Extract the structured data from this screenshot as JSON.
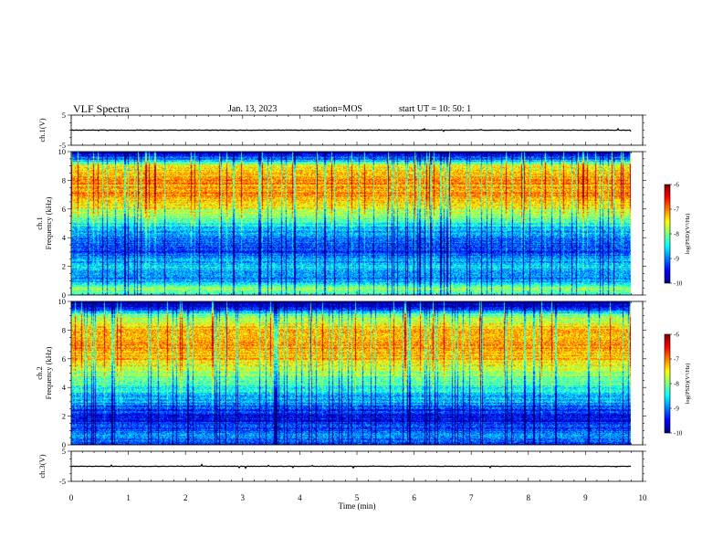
{
  "header": {
    "title": "VLF Spectra",
    "date": "Jan. 13, 2023",
    "station": "station=MOS",
    "start": "start UT =  10: 50: 1"
  },
  "chart_data": {
    "type": "heatmap",
    "time_axis": {
      "label": "Time (min)",
      "range": [
        0,
        10
      ],
      "ticks": [
        "0",
        "1",
        "2",
        "3",
        "4",
        "5",
        "6",
        "7",
        "8",
        "9",
        "10"
      ]
    },
    "panels": [
      {
        "kind": "line",
        "ylabel": "ch.1(V)",
        "ylim": [
          -5,
          5
        ],
        "yticks": [
          "5",
          "-5"
        ],
        "baseline_v": 0,
        "end_min": 9.8
      },
      {
        "kind": "spectrogram",
        "ylabel_top": "ch.1",
        "ylabel_bottom": "Frequency (kHz)",
        "ylim": [
          0,
          10
        ],
        "yticks": [
          "0",
          "2",
          "4",
          "6",
          "8",
          "10"
        ],
        "end_min": 9.8,
        "band_profile_khz": [
          0,
          0.5,
          1,
          2,
          3,
          4,
          5,
          6,
          7,
          8,
          9,
          9.5,
          10
        ],
        "band_profile_level": [
          -8.5,
          -7.8,
          -9.0,
          -8.6,
          -9.3,
          -9.1,
          -8.4,
          -7.6,
          -7.1,
          -7.1,
          -7.5,
          -9.0,
          -10.0
        ],
        "colorbar": {
          "label": "log(PSD)(V²/Hz)",
          "range": [
            -10,
            -6
          ],
          "ticks": [
            "-6",
            "-7",
            "-8",
            "-9",
            "-10"
          ]
        }
      },
      {
        "kind": "spectrogram",
        "ylabel_top": "ch.2",
        "ylabel_bottom": "Frequency (kHz)",
        "ylim": [
          0,
          10
        ],
        "yticks": [
          "0",
          "2",
          "4",
          "6",
          "8",
          "10"
        ],
        "end_min": 9.8,
        "band_profile_khz": [
          0,
          0.5,
          1,
          2,
          3,
          4,
          5,
          6,
          7,
          8,
          9,
          9.5,
          10
        ],
        "band_profile_level": [
          -9.6,
          -8.8,
          -9.2,
          -9.6,
          -8.9,
          -8.4,
          -7.9,
          -7.3,
          -7.0,
          -7.3,
          -7.9,
          -9.3,
          -10.0
        ],
        "colorbar": {
          "label": "log(PSD)(V²/Hz)",
          "range": [
            -10,
            -6
          ],
          "ticks": [
            "-6",
            "-7",
            "-8",
            "-9",
            "-10"
          ]
        }
      },
      {
        "kind": "line",
        "ylabel": "ch.3(V)",
        "ylim": [
          -5,
          5
        ],
        "yticks": [
          "5",
          "-5"
        ],
        "baseline_v": 0,
        "end_min": 9.8
      }
    ],
    "colormap": "jet",
    "colors": {
      "axis": "#000000",
      "trace": "#000000"
    }
  }
}
